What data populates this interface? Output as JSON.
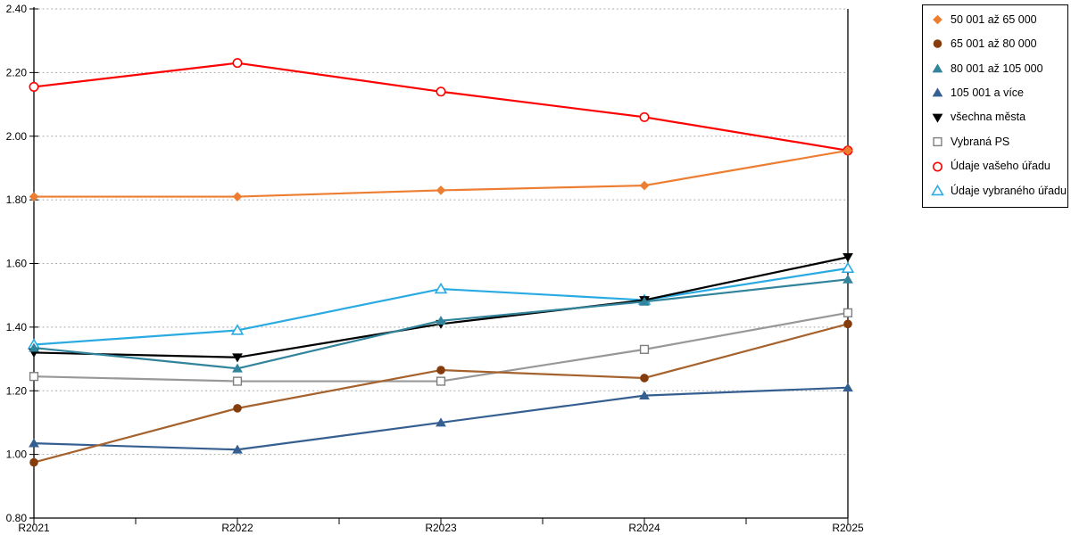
{
  "chart_data": {
    "type": "line",
    "title": "",
    "xlabel": "",
    "ylabel": "",
    "categories": [
      "R2021",
      "R2022",
      "R2023",
      "R2024",
      "R2025"
    ],
    "ylim": [
      0.8,
      2.4
    ],
    "ytick_step": 0.2,
    "yticks": [
      "0.80",
      "1.00",
      "1.20",
      "1.40",
      "1.60",
      "1.80",
      "2.00",
      "2.20",
      "2.40"
    ],
    "grid": "horizontal-dotted",
    "legend_position": "outside-right-top-boxed",
    "series": [
      {
        "name": "50 001 až 65 000",
        "marker": "diamond",
        "style": "filled",
        "color": "#ED7D31",
        "values": [
          1.81,
          1.81,
          1.83,
          1.845,
          1.955
        ]
      },
      {
        "name": "65 001 až 80 000",
        "marker": "circle",
        "style": "filled",
        "color": "#A5622D",
        "marker_color": "#843C0C",
        "values": [
          0.975,
          1.145,
          1.265,
          1.24,
          1.41
        ]
      },
      {
        "name": "80 001 až 105 000",
        "marker": "triangle-up",
        "style": "filled",
        "color": "#31849B",
        "values": [
          1.335,
          1.27,
          1.42,
          1.48,
          1.55
        ]
      },
      {
        "name": "105 001 a více",
        "marker": "triangle-up",
        "style": "filled",
        "color": "#365F91",
        "values": [
          1.035,
          1.015,
          1.1,
          1.185,
          1.21
        ]
      },
      {
        "name": "všechna města",
        "marker": "triangle-down",
        "style": "filled",
        "color": "#000000",
        "values": [
          1.32,
          1.305,
          1.41,
          1.485,
          1.62
        ]
      },
      {
        "name": "Vybraná PS",
        "marker": "square",
        "style": "open",
        "color": "#989898",
        "marker_color": "#7F7F7F",
        "values": [
          1.245,
          1.23,
          1.23,
          1.33,
          1.445
        ]
      },
      {
        "name": "Údaje vašeho úřadu",
        "marker": "circle",
        "style": "open",
        "color": "#FF0000",
        "values": [
          2.155,
          2.23,
          2.14,
          2.06,
          1.955
        ]
      },
      {
        "name": "Údaje vybraného úřadu",
        "marker": "triangle-up",
        "style": "open",
        "color": "#29ABE2",
        "values": [
          1.345,
          1.39,
          1.52,
          1.485,
          1.585
        ]
      }
    ]
  },
  "colors": {
    "grid": "#ABABAB",
    "axis": "#000000",
    "tick_text": "#000000",
    "legend_border": "#000000",
    "background": "#FFFFFF"
  }
}
